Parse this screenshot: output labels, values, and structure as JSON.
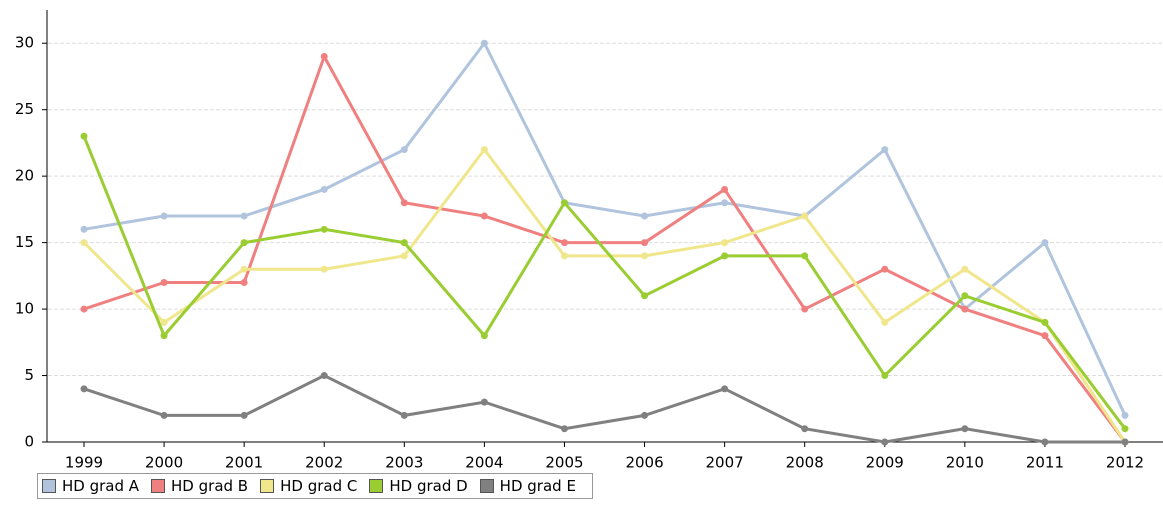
{
  "chart_data": {
    "type": "line",
    "categories": [
      "1999",
      "2000",
      "2001",
      "2002",
      "2003",
      "2004",
      "2005",
      "2006",
      "2007",
      "2008",
      "2009",
      "2010",
      "2011",
      "2012"
    ],
    "series": [
      {
        "name": "HD grad A",
        "color": "#b0c4de",
        "values": [
          16,
          17,
          17,
          19,
          22,
          30,
          18,
          17,
          18,
          17,
          22,
          10,
          15,
          2
        ]
      },
      {
        "name": "HD grad B",
        "color": "#f08080",
        "values": [
          10,
          12,
          12,
          29,
          18,
          17,
          15,
          15,
          19,
          10,
          13,
          10,
          8,
          0
        ]
      },
      {
        "name": "HD grad C",
        "color": "#f0e68c",
        "values": [
          15,
          9,
          13,
          13,
          14,
          22,
          14,
          14,
          15,
          17,
          9,
          13,
          9,
          0
        ]
      },
      {
        "name": "HD grad D",
        "color": "#9acd32",
        "values": [
          23,
          8,
          15,
          16,
          15,
          8,
          18,
          11,
          14,
          14,
          5,
          11,
          9,
          1
        ]
      },
      {
        "name": "HD grad E",
        "color": "#808080",
        "values": [
          4,
          2,
          2,
          5,
          2,
          3,
          1,
          2,
          4,
          1,
          0,
          1,
          0,
          0
        ]
      }
    ],
    "ylim": [
      0,
      32.5
    ],
    "yticks": [
      0,
      5,
      10,
      15,
      20,
      25,
      30
    ],
    "grid": true
  }
}
